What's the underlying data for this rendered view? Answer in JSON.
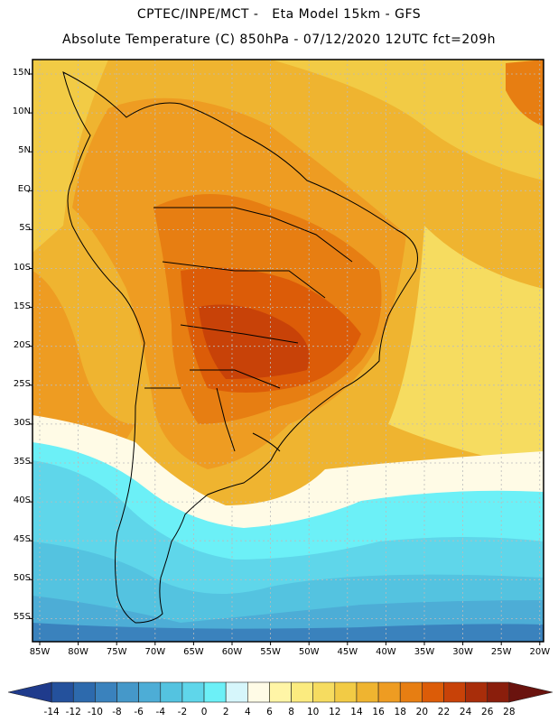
{
  "header": {
    "line1": "CPTEC/INPE/MCT -   Eta Model 15km - GFS",
    "line2": "Absolute Temperature (C) 850hPa - 07/12/2020 12UTC fct=209h"
  },
  "axes": {
    "lat_labels": [
      "15N",
      "10N",
      "5N",
      "EQ",
      "5S",
      "10S",
      "15S",
      "20S",
      "25S",
      "30S",
      "35S",
      "40S",
      "45S",
      "50S",
      "55S"
    ],
    "lon_labels": [
      "85W",
      "80W",
      "75W",
      "70W",
      "65W",
      "60W",
      "55W",
      "50W",
      "45W",
      "40W",
      "35W",
      "30W",
      "25W",
      "20W"
    ]
  },
  "colorbar": {
    "ticks": [
      "-14",
      "-12",
      "-10",
      "-8",
      "-6",
      "-4",
      "-2",
      "0",
      "2",
      "4",
      "6",
      "8",
      "10",
      "12",
      "14",
      "16",
      "18",
      "20",
      "22",
      "24",
      "26",
      "28"
    ],
    "colors": [
      "#1f3b8c",
      "#24519c",
      "#2d6aad",
      "#3a82bd",
      "#4598c9",
      "#4dadd6",
      "#54c3e0",
      "#5fd6ea",
      "#6cf0f7",
      "#d6f6fb",
      "#fffbe6",
      "#fff5a6",
      "#fbeb7f",
      "#f6dc60",
      "#f2cb45",
      "#efb430",
      "#ee9c22",
      "#e77e12",
      "#dc5c08",
      "#c84208",
      "#a82d0a",
      "#8a1e0c",
      "#6a130e"
    ]
  },
  "map": {
    "description_colors": {
      "cold_deep": "#2d6aad",
      "cold": "#4dadd6",
      "cool": "#6cf0f7",
      "neutral": "#fffbe6",
      "warm_light": "#fbeb7f",
      "warm": "#efb430",
      "hot": "#e77e12",
      "very_hot": "#c84208"
    }
  }
}
